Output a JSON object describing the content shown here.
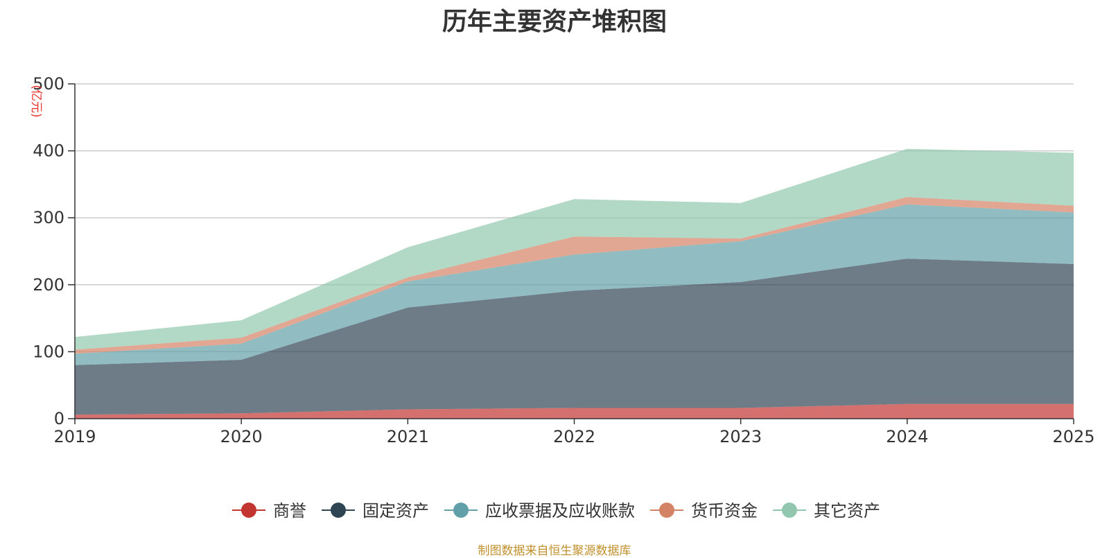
{
  "chart_data": {
    "type": "area",
    "stacked": true,
    "title": "历年主要资产堆积图",
    "y_unit_label": "(亿元)",
    "x": [
      "2019",
      "2020",
      "2021",
      "2022",
      "2023",
      "2024",
      "2025"
    ],
    "ylim": [
      0,
      500
    ],
    "yticks": [
      0,
      100,
      200,
      300,
      400,
      500
    ],
    "grid": true,
    "legend_position": "bottom",
    "series": [
      {
        "name": "商誉",
        "color": "#c23531",
        "values": [
          6,
          8,
          14,
          16,
          16,
          22,
          22
        ]
      },
      {
        "name": "固定资产",
        "color": "#2f4554",
        "values": [
          74,
          80,
          152,
          175,
          188,
          217,
          209
        ]
      },
      {
        "name": "应收票据及应收账款",
        "color": "#61a0a8",
        "values": [
          17,
          24,
          39,
          54,
          61,
          81,
          77
        ]
      },
      {
        "name": "货币资金",
        "color": "#d48265",
        "values": [
          6,
          9,
          6,
          27,
          4,
          11,
          10
        ]
      },
      {
        "name": "其它资产",
        "color": "#91c7ae",
        "values": [
          19,
          26,
          45,
          56,
          53,
          72,
          79
        ]
      }
    ],
    "source_note": "制图数据来自恒生聚源数据库"
  }
}
